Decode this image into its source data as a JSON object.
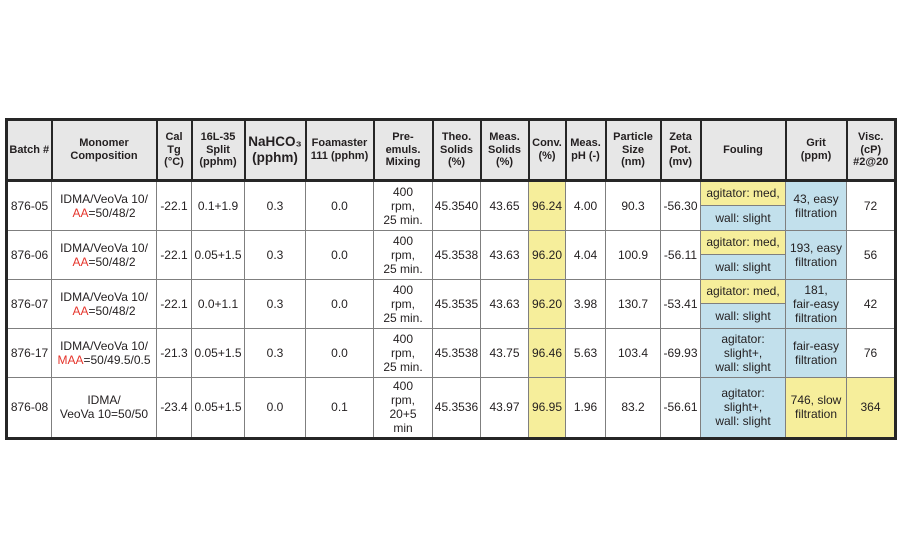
{
  "colors": {
    "header_bg": "#e7e7e7",
    "highlight_yellow": "#f6ee9b",
    "highlight_blue": "#c2e0ec",
    "accent_red": "#e5342b",
    "border_dark": "#262626",
    "border_gray": "#7f7f7f",
    "text": "#231f20"
  },
  "table": {
    "headers": {
      "batch": "Batch #",
      "monomer": "Monomer\nComposition",
      "cal_tg": "Cal Tg\n(°C)",
      "split": "16L-35\nSplit\n(pphm)",
      "nahco3": "NaHCO₃\n(pphm)",
      "foamaster": "Foamaster\n111 (pphm)",
      "premix": "Pre-\nemuls.\nMixing",
      "theo_solids": "Theo.\nSolids\n(%)",
      "meas_solids": "Meas.\nSolids\n(%)",
      "conv": "Conv.\n(%)",
      "ph": "Meas.\npH (-)",
      "particle": "Particle\nSize\n(nm)",
      "zeta": "Zeta\nPot.\n(mv)",
      "fouling": "Fouling",
      "grit": "Grit\n(ppm)",
      "visc": "Visc.\n(cP)\n#2@20"
    },
    "rows": [
      {
        "batch": "876-05",
        "monomer_line1": "IDMA/VeoVa 10/\n",
        "monomer_red": "AA",
        "monomer_rest": "=50/48/2",
        "cal_tg": "-22.1",
        "split": "0.1+1.9",
        "nahco3": "0.3",
        "foamaster": "0.0",
        "premix": "400\nrpm,\n25 min.",
        "theo_solids": "45.3540",
        "meas_solids": "43.65",
        "conv": "96.24",
        "ph": "4.00",
        "particle": "90.3",
        "zeta": "-56.30",
        "fouling_top": "agitator: med,",
        "fouling_bottom": "wall: slight",
        "grit": "43, easy\nfiltration",
        "grit_bg": "blue",
        "visc": "72",
        "visc_bg": "white"
      },
      {
        "batch": "876-06",
        "monomer_line1": "IDMA/VeoVa 10/\n",
        "monomer_red": "AA",
        "monomer_rest": "=50/48/2",
        "cal_tg": "-22.1",
        "split": "0.05+1.5",
        "nahco3": "0.3",
        "foamaster": "0.0",
        "premix": "400\nrpm,\n25 min.",
        "theo_solids": "45.3538",
        "meas_solids": "43.63",
        "conv": "96.20",
        "ph": "4.04",
        "particle": "100.9",
        "zeta": "-56.11",
        "fouling_top": "agitator: med,",
        "fouling_bottom": "wall: slight",
        "grit": "193, easy\nfiltration",
        "grit_bg": "blue",
        "visc": "56",
        "visc_bg": "white"
      },
      {
        "batch": "876-07",
        "monomer_line1": "IDMA/VeoVa 10/\n",
        "monomer_red": "AA",
        "monomer_rest": "=50/48/2",
        "cal_tg": "-22.1",
        "split": "0.0+1.1",
        "nahco3": "0.3",
        "foamaster": "0.0",
        "premix": "400\nrpm,\n25 min.",
        "theo_solids": "45.3535",
        "meas_solids": "43.63",
        "conv": "96.20",
        "ph": "3.98",
        "particle": "130.7",
        "zeta": "-53.41",
        "fouling_top": "agitator: med,",
        "fouling_bottom": "wall: slight",
        "grit": "181,\nfair-easy\nfiltration",
        "grit_bg": "blue",
        "visc": "42",
        "visc_bg": "white"
      },
      {
        "batch": "876-17",
        "monomer_line1": "IDMA/VeoVa 10/\n",
        "monomer_red": "MAA",
        "monomer_rest": "=50/49.5/0.5",
        "cal_tg": "-21.3",
        "split": "0.05+1.5",
        "nahco3": "0.3",
        "foamaster": "0.0",
        "premix": "400\nrpm,\n25 min.",
        "theo_solids": "45.3538",
        "meas_solids": "43.75",
        "conv": "96.46",
        "ph": "5.63",
        "particle": "103.4",
        "zeta": "-69.93",
        "fouling": "agitator:\nslight+,\nwall: slight",
        "grit": "fair-easy\nfiltration",
        "grit_bg": "blue",
        "visc": "76",
        "visc_bg": "white"
      },
      {
        "batch": "876-08",
        "monomer_line1": "IDMA/\n",
        "monomer_red": "",
        "monomer_rest": "VeoVa 10=50/50",
        "cal_tg": "-23.4",
        "split": "0.05+1.5",
        "nahco3": "0.0",
        "foamaster": "0.1",
        "premix": "400\nrpm,\n20+5\nmin",
        "theo_solids": "45.3536",
        "meas_solids": "43.97",
        "conv": "96.95",
        "ph": "1.96",
        "particle": "83.2",
        "zeta": "-56.61",
        "fouling": "agitator:\nslight+,\nwall: slight",
        "grit": "746, slow\nfiltration",
        "grit_bg": "yellow",
        "visc": "364",
        "visc_bg": "yellow"
      }
    ]
  }
}
